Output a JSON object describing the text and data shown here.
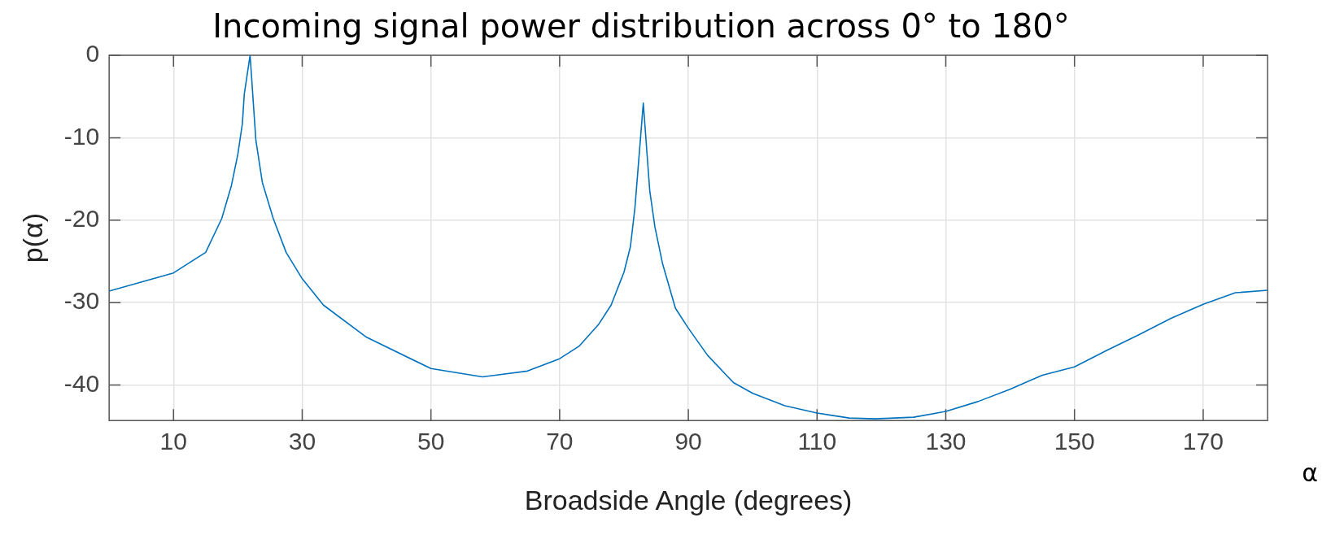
{
  "chart_data": {
    "type": "line",
    "title": "Incoming signal power distribution across 0° to 180°",
    "xlabel": "Broadside Angle (degrees)",
    "ylabel": "p(α)",
    "annotations": [
      "α"
    ],
    "xlim": [
      0,
      180
    ],
    "ylim": [
      -44.3,
      0
    ],
    "xticks": [
      10,
      30,
      50,
      70,
      90,
      110,
      130,
      150,
      170
    ],
    "yticks": [
      -40,
      -30,
      -20,
      -10,
      0
    ],
    "grid": true,
    "legend": false,
    "marker": "none",
    "line_style": "solid",
    "series": [
      {
        "color": "#0072bd",
        "x": [
          0,
          10,
          15,
          17.5,
          19,
          20,
          20.7,
          21,
          21.9,
          22.8,
          23.8,
          25.5,
          27.5,
          30,
          33.3,
          40,
          50,
          58,
          60,
          65,
          70,
          73,
          76,
          78,
          80,
          81,
          81.7,
          83,
          84,
          84.8,
          86,
          88,
          90,
          93,
          97,
          100,
          105,
          110,
          115,
          119,
          122,
          125,
          130,
          135,
          140,
          145,
          150,
          155,
          160,
          165,
          170,
          175,
          180
        ],
        "values": [
          -28.6,
          -26.4,
          -23.9,
          -19.8,
          -15.8,
          -12,
          -8.3,
          -4.7,
          0,
          -10.3,
          -15.4,
          -19.8,
          -23.9,
          -27.1,
          -30.3,
          -34.2,
          -38,
          -39,
          -38.8,
          -38.3,
          -36.8,
          -35.3,
          -32.7,
          -30.3,
          -26.3,
          -23.2,
          -18.5,
          -5.8,
          -16.4,
          -20.8,
          -25.3,
          -30.7,
          -33.1,
          -36.4,
          -39.7,
          -41,
          -42.5,
          -43.4,
          -44,
          -44.1,
          -44,
          -43.9,
          -43.2,
          -42,
          -40.5,
          -38.8,
          -37.8,
          -35.8,
          -33.9,
          -31.9,
          -30.2,
          -28.8,
          -28.5
        ]
      }
    ]
  }
}
